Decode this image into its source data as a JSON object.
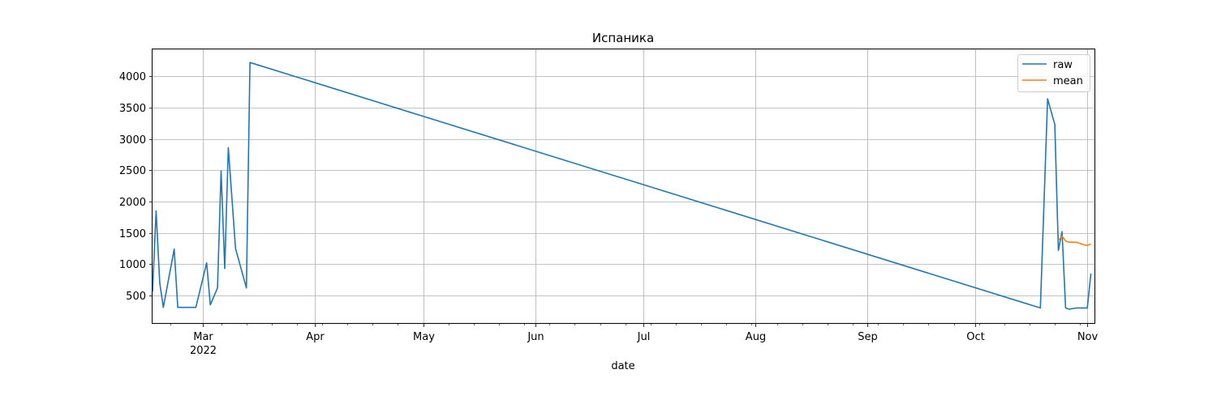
{
  "chart_data": {
    "type": "line",
    "title": "Испаника",
    "xlabel": "date",
    "ylabel": "",
    "xlim": [
      "2022-02-15",
      "2022-11-03"
    ],
    "ylim": [
      60,
      4430
    ],
    "grid": true,
    "legend_position": "top-right",
    "x_tick_labels": [
      {
        "date": "2022-03-01",
        "label": "Mar",
        "sublabel": "2022"
      },
      {
        "date": "2022-04-01",
        "label": "Apr",
        "sublabel": ""
      },
      {
        "date": "2022-05-01",
        "label": "May",
        "sublabel": ""
      },
      {
        "date": "2022-06-01",
        "label": "Jun",
        "sublabel": ""
      },
      {
        "date": "2022-07-01",
        "label": "Jul",
        "sublabel": ""
      },
      {
        "date": "2022-08-01",
        "label": "Aug",
        "sublabel": ""
      },
      {
        "date": "2022-09-01",
        "label": "Sep",
        "sublabel": ""
      },
      {
        "date": "2022-10-01",
        "label": "Oct",
        "sublabel": ""
      },
      {
        "date": "2022-11-01",
        "label": "Nov",
        "sublabel": ""
      }
    ],
    "x_minor_ticks": [
      "2022-02-20",
      "2022-03-06",
      "2022-03-13",
      "2022-03-20",
      "2022-03-27",
      "2022-04-03",
      "2022-04-10",
      "2022-04-17",
      "2022-04-24",
      "2022-05-08",
      "2022-05-15",
      "2022-05-22",
      "2022-05-29",
      "2022-06-05",
      "2022-06-12",
      "2022-06-19",
      "2022-06-26",
      "2022-07-03",
      "2022-07-10",
      "2022-07-17",
      "2022-07-24",
      "2022-07-31",
      "2022-08-07",
      "2022-08-14",
      "2022-08-21",
      "2022-08-28",
      "2022-09-04",
      "2022-09-11",
      "2022-09-18",
      "2022-09-25",
      "2022-10-02",
      "2022-10-09",
      "2022-10-16",
      "2022-10-23",
      "2022-10-30"
    ],
    "y_ticks": [
      500,
      1000,
      1500,
      2000,
      2500,
      3000,
      3500,
      4000
    ],
    "series": [
      {
        "name": "raw",
        "color": "#1f77b4",
        "points": [
          [
            "2022-02-15",
            560
          ],
          [
            "2022-02-16",
            1850
          ],
          [
            "2022-02-17",
            700
          ],
          [
            "2022-02-18",
            310
          ],
          [
            "2022-02-21",
            1240
          ],
          [
            "2022-02-22",
            310
          ],
          [
            "2022-02-27",
            310
          ],
          [
            "2022-03-02",
            1020
          ],
          [
            "2022-03-03",
            350
          ],
          [
            "2022-03-05",
            620
          ],
          [
            "2022-03-06",
            2490
          ],
          [
            "2022-03-07",
            930
          ],
          [
            "2022-03-08",
            2860
          ],
          [
            "2022-03-10",
            1250
          ],
          [
            "2022-03-13",
            620
          ],
          [
            "2022-03-14",
            4220
          ],
          [
            "2022-10-19",
            300
          ],
          [
            "2022-10-21",
            3640
          ],
          [
            "2022-10-23",
            3230
          ],
          [
            "2022-10-24",
            1220
          ],
          [
            "2022-10-25",
            1520
          ],
          [
            "2022-10-26",
            300
          ],
          [
            "2022-10-27",
            280
          ],
          [
            "2022-10-29",
            300
          ],
          [
            "2022-11-01",
            300
          ],
          [
            "2022-11-02",
            850
          ]
        ]
      },
      {
        "name": "mean",
        "color": "#ff7f0e",
        "points": [
          [
            "2022-10-24",
            1380
          ],
          [
            "2022-10-25",
            1450
          ],
          [
            "2022-10-26",
            1370
          ],
          [
            "2022-10-27",
            1350
          ],
          [
            "2022-10-29",
            1350
          ],
          [
            "2022-10-31",
            1310
          ],
          [
            "2022-11-01",
            1300
          ],
          [
            "2022-11-02",
            1320
          ]
        ]
      }
    ]
  }
}
